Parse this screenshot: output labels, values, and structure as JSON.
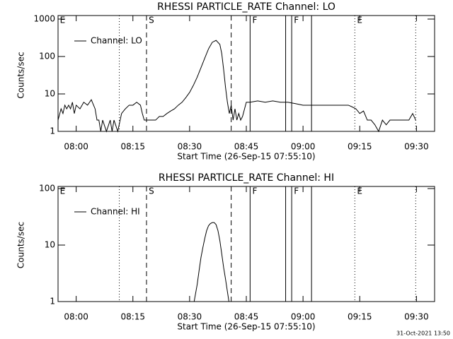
{
  "chart_data": [
    {
      "type": "line",
      "title": "RHESSI PARTICLE_RATE Channel: LO",
      "x_label": "Start Time (26-Sep-15 07:55:10)",
      "y_label": "Counts/sec",
      "log_y": true,
      "xlim": [
        475.2,
        574.8
      ],
      "ylim": [
        1,
        1000
      ],
      "yticks": [
        1,
        10,
        100,
        1000
      ],
      "xticks": [
        {
          "value": 480,
          "label": "08:00"
        },
        {
          "value": 495,
          "label": "08:15"
        },
        {
          "value": 510,
          "label": "08:30"
        },
        {
          "value": 525,
          "label": "08:45"
        },
        {
          "value": 540,
          "label": "09:00"
        },
        {
          "value": 555,
          "label": "09:15"
        },
        {
          "value": 570,
          "label": "09:30"
        }
      ],
      "markers": [
        {
          "x": 491.4,
          "style": "dotted"
        },
        {
          "x": 498.6,
          "style": "dashed"
        },
        {
          "x": 521,
          "style": "dashed"
        },
        {
          "x": 526,
          "style": "solid"
        },
        {
          "x": 535.4,
          "style": "solid"
        },
        {
          "x": 537,
          "style": "solid"
        },
        {
          "x": 542.25,
          "style": "solid"
        },
        {
          "x": 553.7,
          "style": "dotted"
        },
        {
          "x": 569.8,
          "style": "dotted"
        }
      ],
      "flags": [
        {
          "x": 475.5,
          "label": "E"
        },
        {
          "x": 499,
          "label": "S"
        },
        {
          "x": 526.4,
          "label": "F"
        },
        {
          "x": 537.4,
          "label": "F"
        },
        {
          "x": 554.1,
          "label": "E"
        }
      ],
      "x": [
        475.2,
        476,
        476.5,
        477,
        477.5,
        478,
        478.5,
        479,
        479.5,
        480,
        481,
        482,
        483,
        484,
        485,
        485.5,
        486,
        486.5,
        487,
        488,
        489,
        489.5,
        490,
        491,
        492,
        493,
        494,
        495,
        496,
        497,
        497.5,
        498,
        499,
        500,
        501,
        502,
        503,
        504,
        505,
        506,
        507,
        508,
        509,
        510,
        511,
        512,
        513,
        514,
        515,
        516,
        517,
        518,
        518.5,
        519,
        519.5,
        520,
        520.5,
        521,
        521.5,
        522,
        522.5,
        523,
        523.5,
        524,
        525,
        526,
        528,
        530,
        532,
        534,
        536,
        538,
        540,
        542,
        544,
        546,
        548,
        550,
        552,
        553,
        554,
        555,
        556,
        557,
        558,
        559,
        560,
        561,
        562,
        563,
        564,
        565,
        566,
        567,
        568,
        569,
        569.8
      ],
      "series": [
        {
          "name": "Channel: LO",
          "color": "#000000",
          "values": [
            2,
            4,
            3,
            5,
            4,
            5,
            4,
            6,
            3,
            5,
            4,
            6,
            5,
            7,
            4,
            2,
            2,
            1,
            2,
            1,
            2,
            1,
            2,
            1,
            3,
            4,
            5,
            5,
            6,
            5,
            3,
            2,
            2,
            2,
            2,
            2.5,
            2.5,
            3,
            3.5,
            4,
            5,
            6,
            8,
            11,
            17,
            28,
            50,
            90,
            160,
            240,
            270,
            210,
            120,
            45,
            15,
            6,
            3,
            5,
            2,
            4,
            2,
            3,
            2,
            2.5,
            6,
            6,
            6.5,
            6,
            6.5,
            6,
            6,
            5.5,
            5,
            5,
            5,
            5,
            5,
            5,
            5,
            4.5,
            4,
            3,
            3.5,
            2,
            2,
            1.5,
            1,
            2,
            1.5,
            2,
            2,
            2,
            2,
            2,
            2,
            3,
            2
          ]
        }
      ]
    },
    {
      "type": "line",
      "title": "RHESSI PARTICLE_RATE Channel: HI",
      "x_label": "Start Time (26-Sep-15 07:55:10)",
      "y_label": "Counts/sec",
      "log_y": true,
      "xlim": [
        475.2,
        574.8
      ],
      "ylim": [
        1,
        100
      ],
      "yticks": [
        1,
        10,
        100
      ],
      "xticks": [
        {
          "value": 480,
          "label": "08:00"
        },
        {
          "value": 495,
          "label": "08:15"
        },
        {
          "value": 510,
          "label": "08:30"
        },
        {
          "value": 525,
          "label": "08:45"
        },
        {
          "value": 540,
          "label": "09:00"
        },
        {
          "value": 555,
          "label": "09:15"
        },
        {
          "value": 570,
          "label": "09:30"
        }
      ],
      "markers": [
        {
          "x": 491.4,
          "style": "dotted"
        },
        {
          "x": 498.6,
          "style": "dashed"
        },
        {
          "x": 521,
          "style": "dashed"
        },
        {
          "x": 526,
          "style": "solid"
        },
        {
          "x": 535.4,
          "style": "solid"
        },
        {
          "x": 537,
          "style": "solid"
        },
        {
          "x": 542.25,
          "style": "solid"
        },
        {
          "x": 553.7,
          "style": "dotted"
        },
        {
          "x": 569.8,
          "style": "dotted"
        }
      ],
      "flags": [
        {
          "x": 475.5,
          "label": "E"
        },
        {
          "x": 499,
          "label": "S"
        },
        {
          "x": 526.4,
          "label": "F"
        },
        {
          "x": 537.4,
          "label": "F"
        },
        {
          "x": 554.1,
          "label": "E"
        }
      ],
      "x": [
        511.2,
        512,
        512.5,
        513,
        513.5,
        514,
        514.5,
        515,
        515.5,
        516,
        516.5,
        517,
        517.5,
        518,
        518.5,
        519,
        519.5,
        520,
        520.4
      ],
      "series": [
        {
          "name": "Channel: HI",
          "color": "#000000",
          "values": [
            1,
            2,
            3.5,
            6,
            9,
            13,
            18,
            22,
            24,
            25,
            25,
            23,
            18,
            12,
            7,
            4,
            2.5,
            1.5,
            1
          ]
        }
      ]
    }
  ],
  "footer": "31-Oct-2021 13:50"
}
